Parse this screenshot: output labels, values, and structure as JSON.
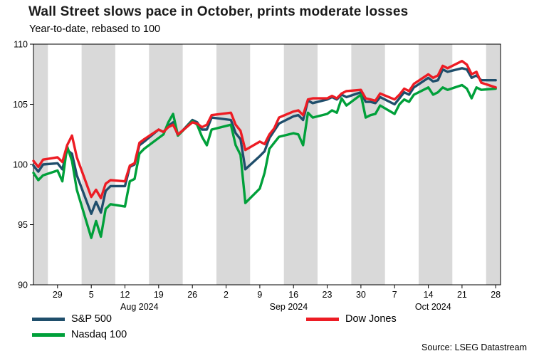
{
  "source": "Source: LSEG Datastream",
  "chart_data": {
    "type": "line",
    "title": "Wall Street slows pace in October, prints moderate losses",
    "subtitle": "Year-to-date, rebased to 100",
    "ylim": [
      90,
      110
    ],
    "yticks": [
      90,
      95,
      100,
      105,
      110
    ],
    "x_domain": [
      "2024-07-24",
      "2024-10-29"
    ],
    "shading": {
      "anchor_saturday": "2024-07-20",
      "color": "#d9d9d9"
    },
    "xticks": [
      {
        "date": "2024-07-29",
        "label": "29"
      },
      {
        "date": "2024-08-05",
        "label": "5"
      },
      {
        "date": "2024-08-12",
        "label": "12"
      },
      {
        "date": "2024-08-19",
        "label": "19"
      },
      {
        "date": "2024-08-26",
        "label": "26"
      },
      {
        "date": "2024-09-02",
        "label": "2"
      },
      {
        "date": "2024-09-09",
        "label": "9"
      },
      {
        "date": "2024-09-16",
        "label": "16"
      },
      {
        "date": "2024-09-23",
        "label": "23"
      },
      {
        "date": "2024-09-30",
        "label": "30"
      },
      {
        "date": "2024-10-07",
        "label": "7"
      },
      {
        "date": "2024-10-14",
        "label": "14"
      },
      {
        "date": "2024-10-21",
        "label": "21"
      },
      {
        "date": "2024-10-28",
        "label": "28"
      }
    ],
    "month_labels": [
      {
        "date": "2024-08-15",
        "label": "Aug 2024"
      },
      {
        "date": "2024-09-15",
        "label": "Sep 2024"
      },
      {
        "date": "2024-10-15",
        "label": "Oct 2024"
      }
    ],
    "x": [
      "2024-07-24",
      "2024-07-25",
      "2024-07-26",
      "2024-07-29",
      "2024-07-30",
      "2024-07-31",
      "2024-08-01",
      "2024-08-02",
      "2024-08-05",
      "2024-08-06",
      "2024-08-07",
      "2024-08-08",
      "2024-08-09",
      "2024-08-12",
      "2024-08-13",
      "2024-08-14",
      "2024-08-15",
      "2024-08-16",
      "2024-08-19",
      "2024-08-20",
      "2024-08-21",
      "2024-08-22",
      "2024-08-23",
      "2024-08-26",
      "2024-08-27",
      "2024-08-28",
      "2024-08-29",
      "2024-08-30",
      "2024-09-03",
      "2024-09-04",
      "2024-09-05",
      "2024-09-06",
      "2024-09-09",
      "2024-09-10",
      "2024-09-11",
      "2024-09-12",
      "2024-09-13",
      "2024-09-16",
      "2024-09-17",
      "2024-09-18",
      "2024-09-19",
      "2024-09-20",
      "2024-09-23",
      "2024-09-24",
      "2024-09-25",
      "2024-09-26",
      "2024-09-27",
      "2024-09-30",
      "2024-10-01",
      "2024-10-02",
      "2024-10-03",
      "2024-10-04",
      "2024-10-07",
      "2024-10-08",
      "2024-10-09",
      "2024-10-10",
      "2024-10-11",
      "2024-10-14",
      "2024-10-15",
      "2024-10-16",
      "2024-10-17",
      "2024-10-18",
      "2024-10-21",
      "2024-10-22",
      "2024-10-23",
      "2024-10-24",
      "2024-10-25",
      "2024-10-28"
    ],
    "series": [
      {
        "name": "S&P 500",
        "color": "#1f4e6b",
        "values": [
          99.9,
          99.4,
          100.0,
          100.1,
          99.6,
          101.2,
          100.9,
          99.1,
          95.9,
          96.9,
          96.0,
          97.8,
          98.2,
          98.2,
          99.8,
          100.0,
          101.6,
          101.9,
          102.9,
          102.7,
          103.2,
          103.5,
          102.4,
          103.7,
          103.5,
          102.9,
          102.9,
          103.9,
          103.7,
          102.6,
          102.1,
          99.6,
          100.7,
          101.1,
          102.2,
          102.8,
          103.4,
          104.0,
          104.1,
          103.7,
          105.3,
          105.1,
          105.4,
          105.6,
          105.4,
          105.8,
          105.6,
          106.0,
          105.2,
          105.2,
          105.1,
          105.6,
          105.0,
          105.5,
          106.0,
          105.8,
          106.4,
          107.2,
          106.9,
          107.0,
          107.9,
          107.7,
          108.0,
          107.9,
          107.2,
          107.4,
          107.0,
          107.0
        ]
      },
      {
        "name": "Nasdaq 100",
        "color": "#00a03a",
        "values": [
          99.3,
          98.7,
          99.1,
          99.5,
          98.6,
          101.5,
          100.3,
          97.9,
          93.9,
          95.3,
          94.0,
          96.3,
          96.7,
          96.5,
          98.6,
          98.8,
          100.9,
          101.3,
          102.2,
          102.5,
          103.5,
          104.2,
          102.4,
          103.6,
          103.3,
          102.3,
          101.6,
          102.9,
          103.3,
          101.6,
          100.8,
          96.8,
          98.0,
          99.3,
          101.3,
          101.8,
          102.3,
          102.6,
          102.5,
          101.6,
          104.3,
          103.9,
          104.2,
          104.5,
          104.3,
          105.5,
          104.9,
          105.8,
          103.9,
          104.1,
          104.2,
          104.9,
          104.2,
          105.0,
          105.4,
          105.2,
          105.8,
          106.4,
          105.8,
          106.0,
          106.4,
          106.2,
          106.6,
          106.3,
          105.5,
          106.4,
          106.2,
          106.3
        ]
      },
      {
        "name": "Dow Jones",
        "color": "#ed1c24",
        "values": [
          100.3,
          99.8,
          100.4,
          100.6,
          100.2,
          101.6,
          102.4,
          100.6,
          97.3,
          97.9,
          97.2,
          98.4,
          98.7,
          98.6,
          99.9,
          100.1,
          101.8,
          102.1,
          102.9,
          102.7,
          103.1,
          103.3,
          102.5,
          103.5,
          103.4,
          103.1,
          103.3,
          104.1,
          104.3,
          103.3,
          102.8,
          101.2,
          101.9,
          101.7,
          102.5,
          103.0,
          103.9,
          104.4,
          104.5,
          104.1,
          105.4,
          105.5,
          105.5,
          105.7,
          105.5,
          105.9,
          106.1,
          106.2,
          105.5,
          105.4,
          105.3,
          105.9,
          105.4,
          105.8,
          106.3,
          106.1,
          106.7,
          107.5,
          107.2,
          107.4,
          108.2,
          108.0,
          108.6,
          108.3,
          107.5,
          107.7,
          106.8,
          106.4
        ]
      }
    ],
    "legend_position": "bottom"
  }
}
